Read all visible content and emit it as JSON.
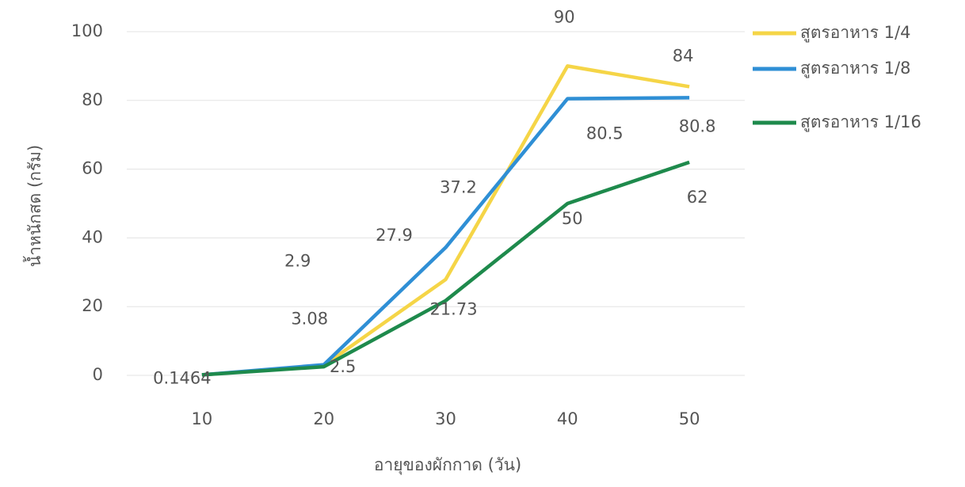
{
  "chart_data": {
    "type": "line",
    "x": [
      10,
      20,
      30,
      40,
      50
    ],
    "series": [
      {
        "name": "สูตรอาหาร 1/4",
        "color": "#f5d547",
        "values": [
          0.1464,
          2.9,
          27.9,
          90,
          84
        ]
      },
      {
        "name": "สูตรอาหาร 1/8",
        "color": "#2f8fd5",
        "values": [
          0.1464,
          3.08,
          37.2,
          80.5,
          80.8
        ]
      },
      {
        "name": "สูตรอาหาร 1/16",
        "color": "#1e8a4c",
        "values": [
          0.1464,
          2.5,
          21.73,
          50,
          62
        ]
      }
    ],
    "xlim": [
      5,
      55
    ],
    "xticks": [
      10,
      20,
      30,
      40,
      50
    ],
    "ylim": [
      0,
      100
    ],
    "yticks": [
      0,
      20,
      40,
      60,
      80,
      100
    ],
    "xlabel": "อายุของผักกาด (วัน)",
    "ylabel": "น้ำหนักสด (กรัม)",
    "grid": true,
    "legend": "right"
  }
}
